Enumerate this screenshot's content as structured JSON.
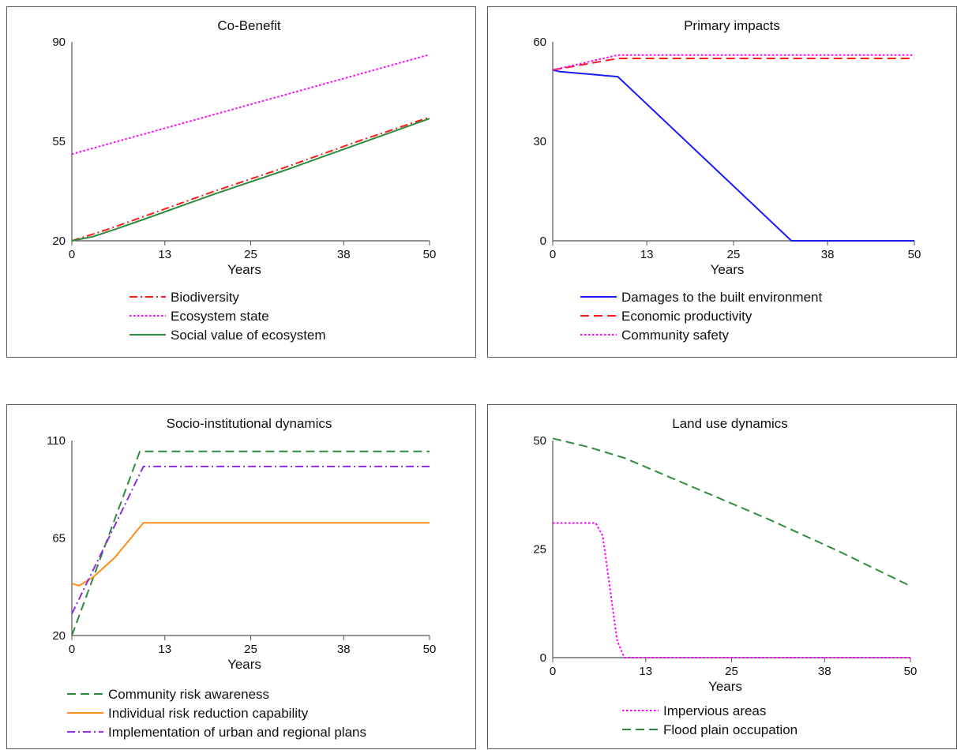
{
  "chart_data": [
    {
      "type": "line",
      "title": "Co-Benefit",
      "xlabel": "Years",
      "ylabel": "",
      "xlim": [
        0,
        50
      ],
      "ylim": [
        20,
        90
      ],
      "x_ticks": [
        0,
        13,
        25,
        38,
        50
      ],
      "y_ticks": [
        20,
        55,
        90
      ],
      "legend_position": "bottom",
      "series": [
        {
          "name": "Biodiversity",
          "color": "#ff1a1a",
          "dash": "dashdot",
          "points": [
            [
              0,
              20
            ],
            [
              5,
              24
            ],
            [
              10,
              28.5
            ],
            [
              20,
              37.5
            ],
            [
              30,
              46
            ],
            [
              40,
              55
            ],
            [
              50,
              63.5
            ]
          ]
        },
        {
          "name": "Ecosystem state",
          "color": "#ff00ff",
          "dash": "dotted",
          "points": [
            [
              0,
              50.5
            ],
            [
              10,
              57.5
            ],
            [
              20,
              64.5
            ],
            [
              30,
              71.5
            ],
            [
              40,
              78.5
            ],
            [
              50,
              85.5
            ]
          ]
        },
        {
          "name": "Social value of ecosystem",
          "color": "#2e8b3e",
          "dash": "solid",
          "points": [
            [
              0,
              20
            ],
            [
              3,
              21.5
            ],
            [
              6,
              24
            ],
            [
              10,
              27.5
            ],
            [
              20,
              36.5
            ],
            [
              30,
              45
            ],
            [
              40,
              54
            ],
            [
              50,
              63
            ]
          ]
        }
      ]
    },
    {
      "type": "line",
      "title": "Primary impacts",
      "xlabel": "Years",
      "ylabel": "",
      "xlim": [
        0,
        50
      ],
      "ylim": [
        0,
        60
      ],
      "x_ticks": [
        0,
        13,
        25,
        38,
        50
      ],
      "y_ticks": [
        0,
        30,
        60
      ],
      "legend_position": "bottom",
      "series": [
        {
          "name": "Damages to the built environment",
          "color": "#1a1aff",
          "dash": "solid",
          "points": [
            [
              0,
              51.5
            ],
            [
              1,
              51
            ],
            [
              9,
              49.5
            ],
            [
              33,
              0
            ],
            [
              50,
              0
            ]
          ]
        },
        {
          "name": "Economic productivity",
          "color": "#ff1a1a",
          "dash": "dashed",
          "points": [
            [
              0,
              51.5
            ],
            [
              9,
              55
            ],
            [
              50,
              55
            ]
          ]
        },
        {
          "name": "Community safety",
          "color": "#ff00ff",
          "dash": "dotted",
          "points": [
            [
              0,
              51.5
            ],
            [
              9,
              56
            ],
            [
              50,
              56
            ]
          ]
        }
      ]
    },
    {
      "type": "line",
      "title": "Socio-institutional dynamics",
      "xlabel": "Years",
      "ylabel": "",
      "xlim": [
        0,
        50
      ],
      "ylim": [
        20,
        110
      ],
      "x_ticks": [
        0,
        13,
        25,
        38,
        50
      ],
      "y_ticks": [
        20,
        65,
        110
      ],
      "legend_position": "bottom",
      "series": [
        {
          "name": "Community risk awareness",
          "color": "#2e8b3e",
          "dash": "dashed",
          "points": [
            [
              0,
              20
            ],
            [
              9.5,
              105
            ],
            [
              50,
              105
            ]
          ]
        },
        {
          "name": "Individual risk reduction capability",
          "color": "#ff8c1a",
          "dash": "solid",
          "points": [
            [
              0,
              44
            ],
            [
              1,
              43
            ],
            [
              3,
              47
            ],
            [
              6,
              56
            ],
            [
              8,
              64
            ],
            [
              10,
              72
            ],
            [
              50,
              72
            ]
          ]
        },
        {
          "name": "Implementation of urban and regional plans",
          "color": "#8b2be2",
          "dash": "dashdot",
          "points": [
            [
              0,
              30
            ],
            [
              10,
              98
            ],
            [
              50,
              98
            ]
          ]
        }
      ]
    },
    {
      "type": "line",
      "title": "Land use dynamics",
      "xlabel": "Years",
      "ylabel": "",
      "xlim": [
        0,
        50
      ],
      "ylim": [
        0,
        50
      ],
      "x_ticks": [
        0,
        13,
        25,
        38,
        50
      ],
      "y_ticks": [
        0,
        25,
        50
      ],
      "legend_position": "bottom",
      "series": [
        {
          "name": "Impervious areas",
          "color": "#ff00ff",
          "dash": "dotted",
          "points": [
            [
              0,
              31
            ],
            [
              6,
              31
            ],
            [
              7,
              28
            ],
            [
              8,
              16
            ],
            [
              9,
              4
            ],
            [
              10,
              0
            ],
            [
              50,
              0
            ]
          ]
        },
        {
          "name": "Flood plain occupation",
          "color": "#2e8b3e",
          "dash": "dashed",
          "points": [
            [
              0,
              50.5
            ],
            [
              5,
              48.5
            ],
            [
              10,
              46
            ],
            [
              20,
              39
            ],
            [
              30,
              32
            ],
            [
              40,
              24.5
            ],
            [
              50,
              16.5
            ]
          ]
        }
      ]
    }
  ]
}
